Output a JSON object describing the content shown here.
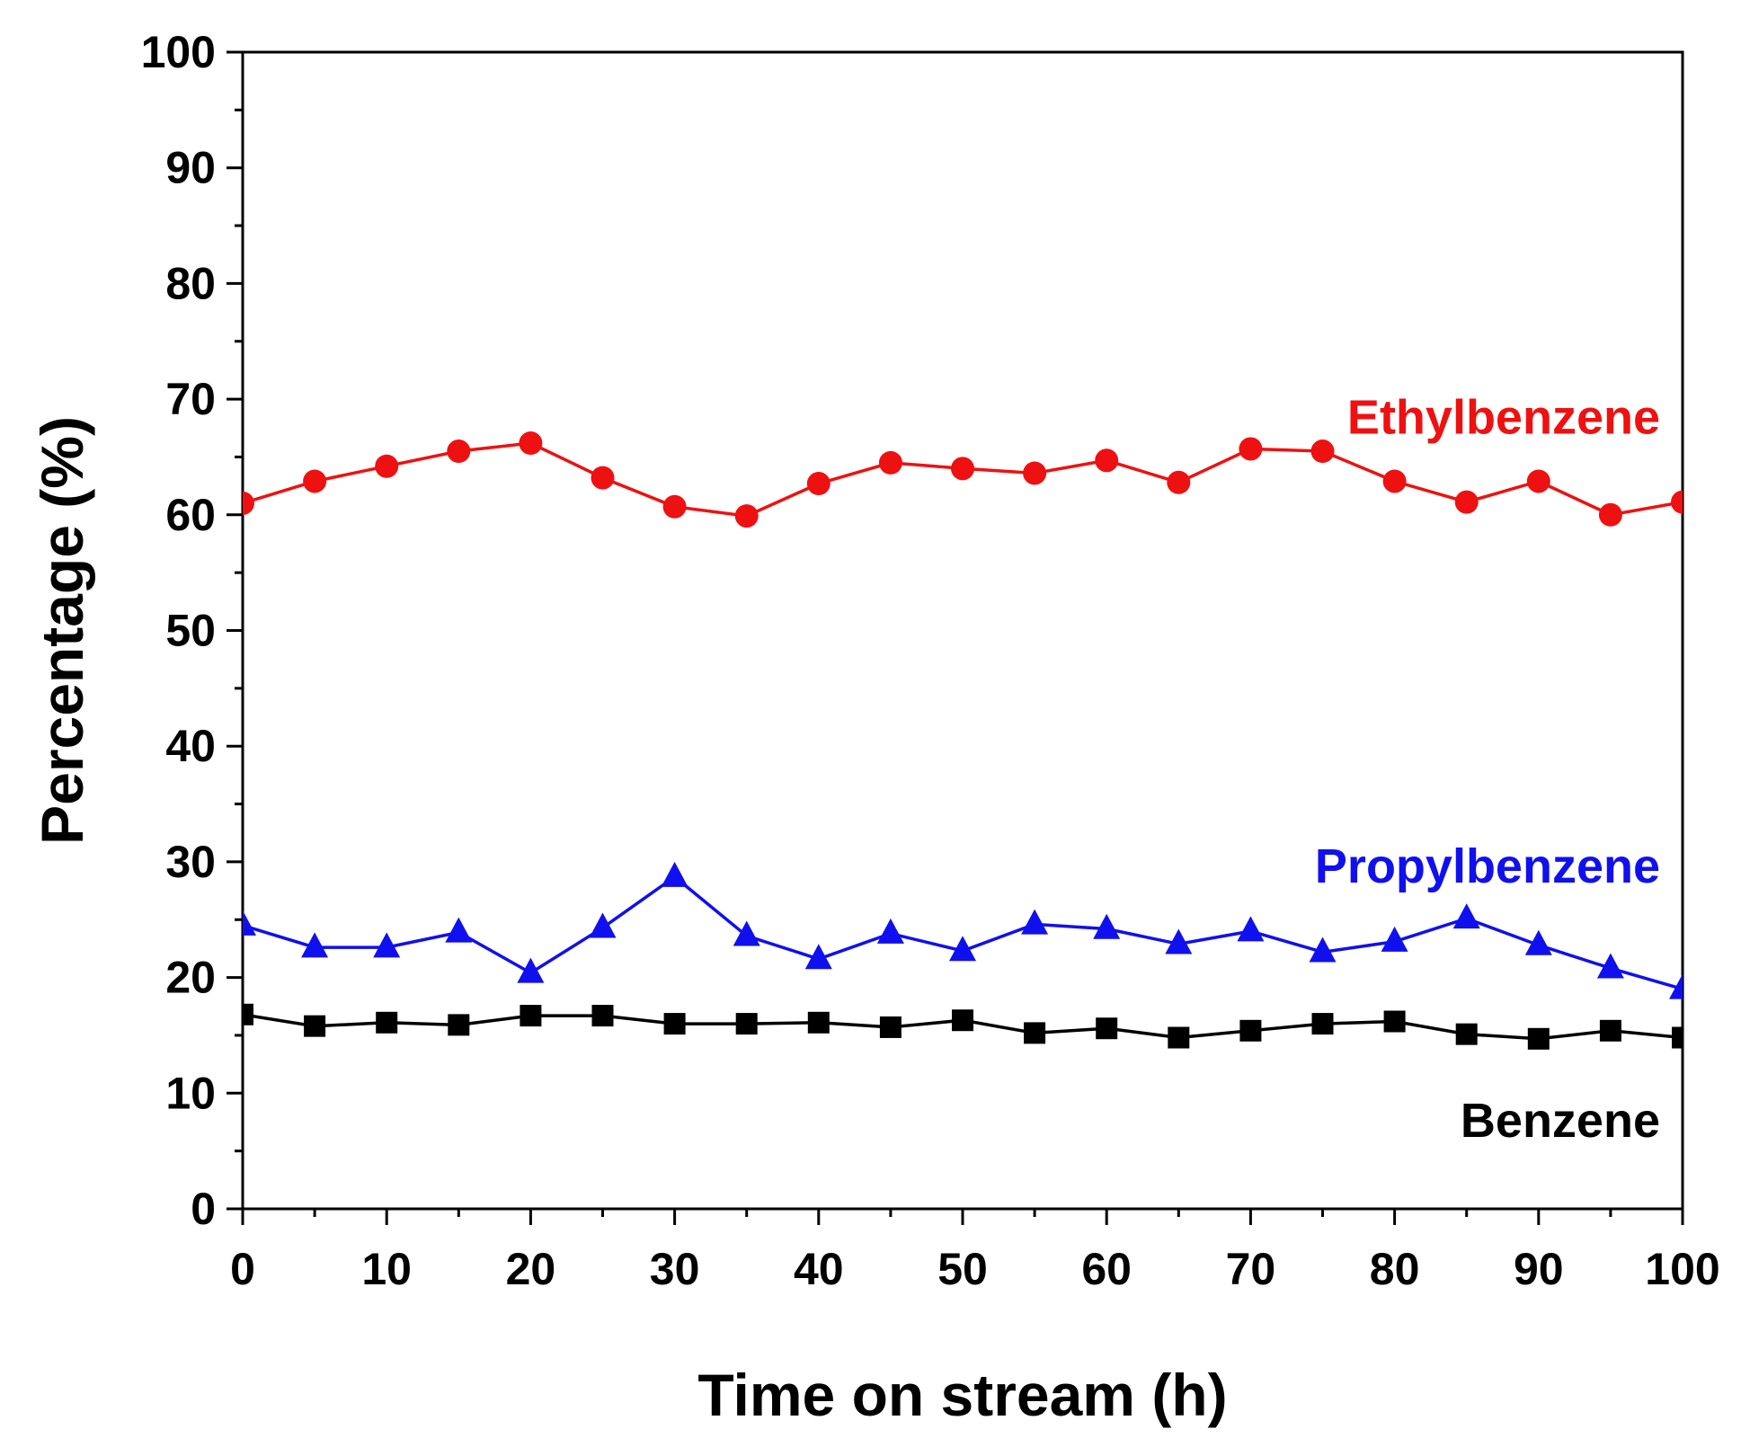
{
  "chart_data": {
    "type": "line",
    "title": "",
    "xlabel": "Time on stream (h)",
    "ylabel": "Percentage (%)",
    "xlim": [
      0,
      100
    ],
    "ylim": [
      0,
      100
    ],
    "x_ticks": [
      0,
      10,
      20,
      30,
      40,
      50,
      60,
      70,
      80,
      90,
      100
    ],
    "y_ticks": [
      0,
      10,
      20,
      30,
      40,
      50,
      60,
      70,
      80,
      90,
      100
    ],
    "grid": false,
    "x": [
      0,
      5,
      10,
      15,
      20,
      25,
      30,
      35,
      40,
      45,
      50,
      55,
      60,
      65,
      70,
      75,
      80,
      85,
      90,
      95,
      100
    ],
    "series": [
      {
        "name": "Ethylbenzene",
        "color": "#ee1111",
        "marker": "circle",
        "values": [
          61.0,
          62.9,
          64.2,
          65.5,
          66.2,
          63.2,
          60.7,
          59.9,
          62.7,
          64.5,
          64.0,
          63.6,
          64.7,
          62.8,
          65.7,
          65.5,
          62.9,
          61.1,
          62.9,
          60.0,
          61.1
        ]
      },
      {
        "name": "Propylbenzene",
        "color": "#1010ee",
        "marker": "triangle",
        "values": [
          24.5,
          22.6,
          22.6,
          23.9,
          20.4,
          24.3,
          28.7,
          23.6,
          21.6,
          23.8,
          22.3,
          24.6,
          24.2,
          22.9,
          24.0,
          22.2,
          23.1,
          25.1,
          22.8,
          20.8,
          19.0
        ]
      },
      {
        "name": "Benzene",
        "color": "#000000",
        "marker": "square",
        "values": [
          16.8,
          15.8,
          16.1,
          15.9,
          16.7,
          16.7,
          16.0,
          16.0,
          16.1,
          15.7,
          16.3,
          15.2,
          15.6,
          14.8,
          15.4,
          16.0,
          16.2,
          15.1,
          14.7,
          15.4,
          14.8
        ]
      }
    ],
    "annotations": [
      {
        "text": "Ethylbenzene",
        "series": "Ethylbenzene",
        "color": "#ee1111",
        "x": 100,
        "y": 68.4
      },
      {
        "text": "Propylbenzene",
        "series": "Propylbenzene",
        "color": "#1010ee",
        "x": 100,
        "y": 29.6
      },
      {
        "text": "Benzene",
        "series": "Benzene",
        "color": "#000000",
        "x": 100,
        "y": 7.6
      }
    ]
  }
}
